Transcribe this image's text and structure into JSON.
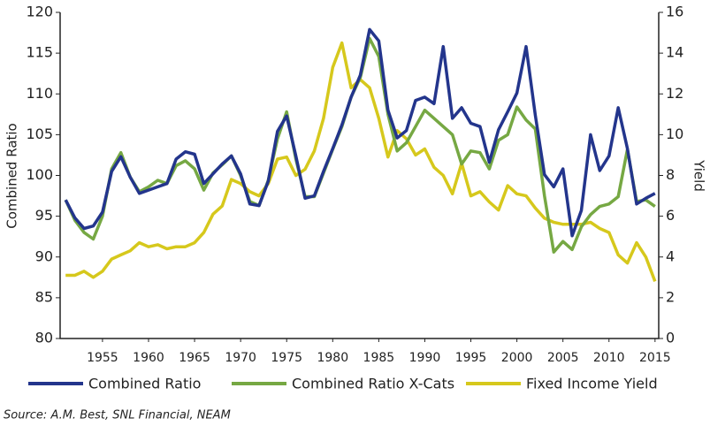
{
  "chart_data": {
    "type": "line",
    "y_label": "Combined Ratio",
    "y2_label": "Yield",
    "source": "Source: A.M. Best, SNL Financial, NEAM",
    "x": [
      1951,
      1952,
      1953,
      1954,
      1955,
      1956,
      1957,
      1958,
      1959,
      1960,
      1961,
      1962,
      1963,
      1964,
      1965,
      1966,
      1967,
      1968,
      1969,
      1970,
      1971,
      1972,
      1973,
      1974,
      1975,
      1976,
      1977,
      1978,
      1979,
      1980,
      1981,
      1982,
      1983,
      1984,
      1985,
      1986,
      1987,
      1988,
      1989,
      1990,
      1991,
      1992,
      1993,
      1994,
      1995,
      1996,
      1997,
      1998,
      1999,
      2000,
      2001,
      2002,
      2003,
      2004,
      2005,
      2006,
      2007,
      2008,
      2009,
      2010,
      2011,
      2012,
      2013,
      2014,
      2015
    ],
    "xlim": [
      1950.4,
      2015.4
    ],
    "xticks": [
      1955,
      1960,
      1965,
      1970,
      1975,
      1980,
      1985,
      1990,
      1995,
      2000,
      2005,
      2010,
      2015
    ],
    "ylim": [
      80,
      120
    ],
    "yticks": [
      80,
      85,
      90,
      95,
      100,
      105,
      110,
      115,
      120
    ],
    "y2lim": [
      0,
      16
    ],
    "y2ticks": [
      0,
      2,
      4,
      6,
      8,
      10,
      12,
      14,
      16
    ],
    "series": [
      {
        "name": "Combined Ratio",
        "color": "#23358c",
        "values": [
          97,
          94.8,
          93.5,
          93.8,
          95.5,
          100.5,
          102.3,
          99.8,
          97.8,
          98.2,
          98.6,
          99,
          102,
          102.9,
          102.6,
          99,
          100.2,
          101.4,
          102.4,
          100.2,
          96.5,
          96.3,
          99.3,
          105.4,
          107.3,
          102.4,
          97.2,
          97.5,
          100.5,
          103.3,
          106.2,
          109.6,
          112.3,
          117.9,
          116.5,
          108,
          104.6,
          105.5,
          109.2,
          109.6,
          108.8,
          115.8,
          107,
          108.3,
          106.4,
          106,
          101.6,
          105.6,
          107.8,
          110.1,
          115.8,
          107.4,
          100.1,
          98.6,
          100.8,
          92.6,
          95.7,
          105,
          100.6,
          102.4,
          108.3,
          103.3,
          96.5,
          97.2,
          97.8
        ]
      },
      {
        "name": "Combined Ratio X-Cats",
        "color": "#76a843",
        "values": [
          97,
          94.5,
          93,
          92.2,
          95,
          100.8,
          102.8,
          99.8,
          98,
          98.6,
          99.4,
          99,
          101.2,
          101.8,
          100.8,
          98.2,
          100.3,
          101.3,
          102.4,
          100,
          96.8,
          96.3,
          99.4,
          104.5,
          107.8,
          102,
          97.4,
          97.4,
          100.3,
          103.2,
          106,
          109.6,
          112,
          116.8,
          114.6,
          107.5,
          103,
          104,
          106,
          108,
          107,
          106,
          105,
          101.4,
          103,
          102.8,
          100.8,
          104.3,
          105,
          108.4,
          106.8,
          105.7,
          97.5,
          90.6,
          91.9,
          90.9,
          93.7,
          95.2,
          96.2,
          96.5,
          97.4,
          103.2,
          96.8,
          97,
          96.2
        ]
      },
      {
        "name": "Fixed Income Yield",
        "color": "#d6c81c",
        "axis": "y2",
        "values": [
          3.1,
          3.1,
          3.3,
          3.0,
          3.3,
          3.9,
          4.1,
          4.3,
          4.7,
          4.5,
          4.6,
          4.4,
          4.5,
          4.5,
          4.7,
          5.2,
          6.1,
          6.5,
          7.8,
          7.6,
          7.2,
          7.0,
          7.6,
          8.8,
          8.9,
          8.0,
          8.3,
          9.2,
          10.8,
          13.3,
          14.5,
          12.3,
          12.7,
          12.3,
          10.8,
          8.9,
          10.2,
          9.8,
          9.0,
          9.3,
          8.4,
          8.0,
          7.1,
          8.6,
          7.0,
          7.2,
          6.7,
          6.3,
          7.5,
          7.1,
          7.0,
          6.4,
          5.9,
          5.7,
          5.6,
          5.6,
          5.6,
          5.7,
          5.4,
          5.2,
          4.1,
          3.7,
          4.7,
          4.0,
          2.8
        ]
      }
    ]
  }
}
